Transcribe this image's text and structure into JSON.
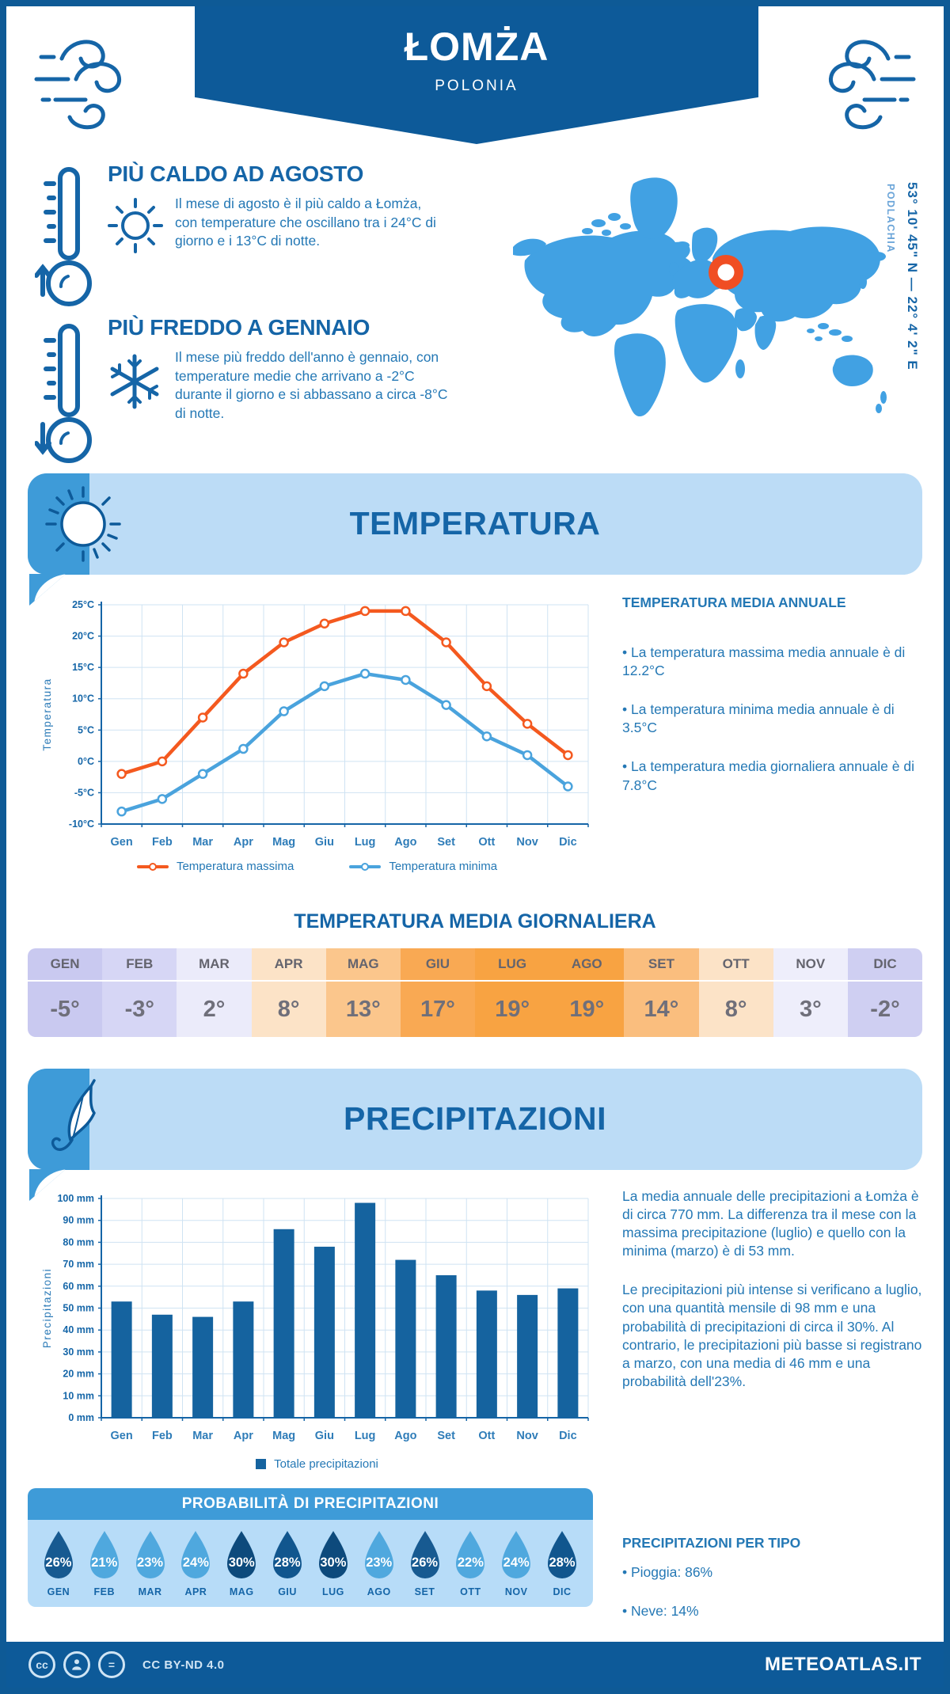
{
  "header": {
    "title": "ŁOMŻA",
    "subtitle": "POLONIA"
  },
  "highlights": [
    {
      "title": "PIÙ CALDO AD AGOSTO",
      "text": "Il mese di agosto è il più caldo a Łomża, con temperature che oscillano tra i 24°C di giorno e i 13°C di notte."
    },
    {
      "title": "PIÙ FREDDO A GENNAIO",
      "text": "Il mese più freddo dell'anno è gennaio, con temperature medie che arrivano a -2°C durante il giorno e si abbassano a circa -8°C di notte."
    }
  ],
  "map": {
    "coordinates": "53° 10' 45\" N — 22° 4' 2\" E",
    "region": "PODLACHIA",
    "marker_color": "#f04e23",
    "land_color": "#41a1e3"
  },
  "sections": {
    "temperature": "TEMPERATURA",
    "precipitation": "PRECIPITAZIONI"
  },
  "chart_data": [
    {
      "type": "line",
      "title": "Temperature mensili",
      "categories": [
        "Gen",
        "Feb",
        "Mar",
        "Apr",
        "Mag",
        "Giu",
        "Lug",
        "Ago",
        "Set",
        "Ott",
        "Nov",
        "Dic"
      ],
      "series": [
        {
          "name": "Temperatura massima",
          "color": "#f4591f",
          "values": [
            -2,
            0,
            7,
            14,
            19,
            22,
            24,
            24,
            19,
            12,
            6,
            1
          ]
        },
        {
          "name": "Temperatura minima",
          "color": "#4aa3dd",
          "values": [
            -8,
            -6,
            -2,
            2,
            8,
            12,
            14,
            13,
            9,
            4,
            1,
            -4
          ]
        }
      ],
      "xlabel": "",
      "ylabel": "Temperatura",
      "ylim": [
        -10,
        25
      ],
      "ytick_step": 5,
      "ytick_suffix": "°C",
      "grid": true,
      "legend_position": "bottom"
    },
    {
      "type": "bar",
      "title": "Precipitazioni mensili",
      "categories": [
        "Gen",
        "Feb",
        "Mar",
        "Apr",
        "Mag",
        "Giu",
        "Lug",
        "Ago",
        "Set",
        "Ott",
        "Nov",
        "Dic"
      ],
      "values": [
        53,
        47,
        46,
        53,
        86,
        78,
        98,
        72,
        65,
        58,
        56,
        59
      ],
      "xlabel": "",
      "ylabel": "Precipitazioni",
      "ylim": [
        0,
        100
      ],
      "ytick_step": 10,
      "ytick_suffix": " mm",
      "grid": true,
      "legend": "Totale precipitazioni",
      "bar_color": "#15639f"
    }
  ],
  "annual": {
    "title": "TEMPERATURA MEDIA ANNUALE",
    "bullets": [
      "• La temperatura massima media annuale è di 12.2°C",
      "• La temperatura minima media annuale è di 3.5°C",
      "• La temperatura media giornaliera annuale è di 7.8°C"
    ]
  },
  "daily_table": {
    "title": "TEMPERATURA MEDIA GIORNALIERA",
    "months": [
      "GEN",
      "FEB",
      "MAR",
      "APR",
      "MAG",
      "GIU",
      "LUG",
      "AGO",
      "SET",
      "OTT",
      "NOV",
      "DIC"
    ],
    "values": [
      "-5°",
      "-3°",
      "2°",
      "8°",
      "13°",
      "17°",
      "19°",
      "19°",
      "14°",
      "8°",
      "3°",
      "-2°"
    ],
    "colors": [
      "#c9c9f0",
      "#d6d6f5",
      "#ebebfa",
      "#fce3c7",
      "#fbc68c",
      "#f9a953",
      "#f8a342",
      "#f8a342",
      "#fabe7e",
      "#fce3c7",
      "#eeeefb",
      "#cfcff2"
    ]
  },
  "precip_text": {
    "p1": "La media annuale delle precipitazioni a Łomża è di circa 770 mm. La differenza tra il mese con la massima precipitazione (luglio) e quello con la minima (marzo) è di 53 mm.",
    "p2": "Le precipitazioni più intense si verificano a luglio, con una quantità mensile di 98 mm e una probabilità di precipitazioni di circa il 30%. Al contrario, le precipitazioni più basse si registrano a marzo, con una media di 46 mm e una probabilità dell'23%."
  },
  "probability": {
    "title": "PROBABILITÀ DI PRECIPITAZIONI",
    "months": [
      "GEN",
      "FEB",
      "MAR",
      "APR",
      "MAG",
      "GIU",
      "LUG",
      "AGO",
      "SET",
      "OTT",
      "NOV",
      "DIC"
    ],
    "values": [
      "26%",
      "21%",
      "23%",
      "24%",
      "30%",
      "28%",
      "30%",
      "23%",
      "26%",
      "22%",
      "24%",
      "28%"
    ],
    "colors": [
      "#175a91",
      "#4fa8de",
      "#4fa8de",
      "#4fa8de",
      "#0d4a7c",
      "#11568e",
      "#0d4a7c",
      "#4fa8de",
      "#175a91",
      "#4fa8de",
      "#4fa8de",
      "#11568e"
    ]
  },
  "precip_type": {
    "title": "PRECIPITAZIONI PER TIPO",
    "bullets": [
      "• Pioggia: 86%",
      "• Neve: 14%"
    ]
  },
  "footer": {
    "license": "CC BY-ND 4.0",
    "site": "METEOATLAS.IT"
  }
}
